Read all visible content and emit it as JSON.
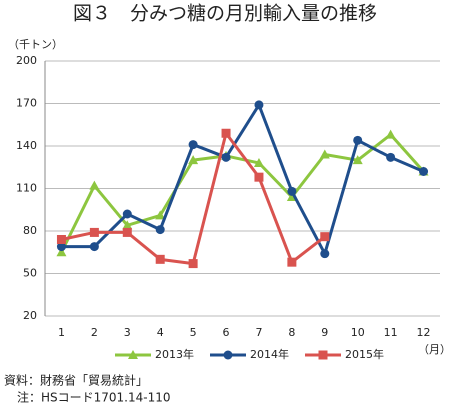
{
  "chart_data": {
    "type": "line",
    "title": "図３　分みつ糖の月別輸入量の推移",
    "y_unit": "（千トン）",
    "x_unit": "（月）",
    "categories": [
      "1",
      "2",
      "3",
      "4",
      "5",
      "6",
      "7",
      "8",
      "9",
      "10",
      "11",
      "12"
    ],
    "series": [
      {
        "name": "2013年",
        "color": "#8dc63f",
        "marker": "triangle",
        "values": [
          65,
          112,
          84,
          91,
          130,
          133,
          128,
          104,
          134,
          130,
          148,
          122
        ]
      },
      {
        "name": "2014年",
        "color": "#1f4e8c",
        "marker": "circle",
        "values": [
          69,
          69,
          92,
          81,
          141,
          132,
          169,
          108,
          64,
          144,
          132,
          122
        ]
      },
      {
        "name": "2015年",
        "color": "#d9534f",
        "marker": "square",
        "values": [
          74,
          79,
          79,
          60,
          57,
          149,
          118,
          58,
          76,
          null,
          null,
          null
        ]
      }
    ],
    "ylim": [
      20,
      200
    ],
    "yticks": [
      20,
      50,
      80,
      110,
      140,
      170,
      200
    ],
    "grid": true,
    "legend": "bottom",
    "source": "資料：財務省「貿易統計」",
    "note": "注：HSコード1701.14-110"
  }
}
